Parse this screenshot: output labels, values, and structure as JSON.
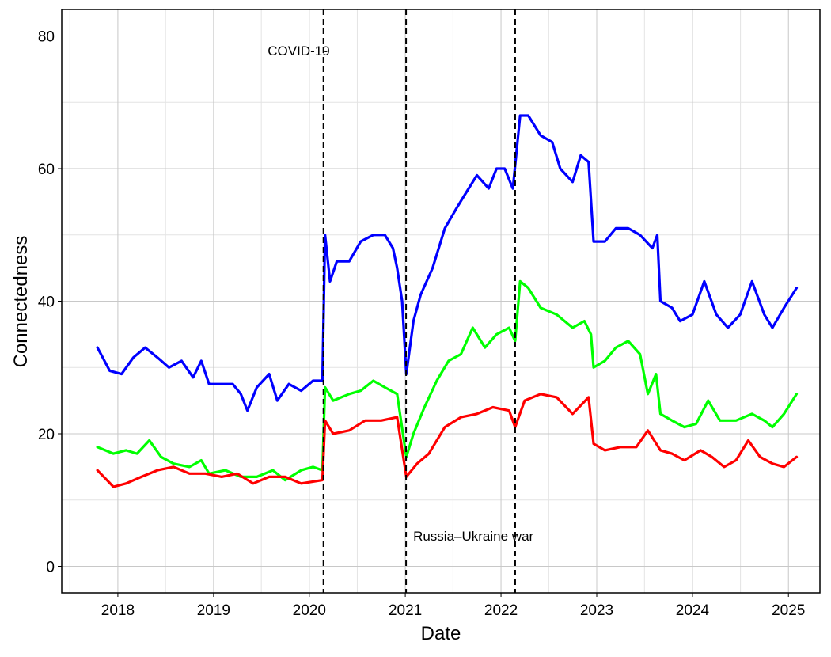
{
  "chart_data": {
    "type": "line",
    "title": "",
    "xlabel": "Date",
    "ylabel": "Connectedness",
    "x_ticks": [
      "2018",
      "2019",
      "2020",
      "2021",
      "2022",
      "2023",
      "2024",
      "2025"
    ],
    "y_ticks": [
      "0",
      "20",
      "40",
      "60",
      "80"
    ],
    "xlim": [
      "2017-06-01",
      "2025-05-01"
    ],
    "ylim": [
      -4,
      84
    ],
    "grid": true,
    "legend": "none",
    "events": [
      {
        "date": "2020-02-24",
        "label": "COVID-19"
      },
      {
        "date": "2021-01-04",
        "label": ""
      },
      {
        "date": "2022-02-24",
        "label": "Russia–Ukraine war"
      }
    ],
    "series": [
      {
        "color": "#0000ff",
        "points": [
          [
            "2017-10-15",
            33.0
          ],
          [
            "2017-12-01",
            29.5
          ],
          [
            "2018-01-15",
            29.0
          ],
          [
            "2018-03-01",
            31.5
          ],
          [
            "2018-04-15",
            33.0
          ],
          [
            "2018-06-01",
            31.5
          ],
          [
            "2018-07-15",
            30.0
          ],
          [
            "2018-09-01",
            31.0
          ],
          [
            "2018-10-15",
            28.5
          ],
          [
            "2018-11-15",
            31.0
          ],
          [
            "2018-12-15",
            27.5
          ],
          [
            "2019-02-01",
            27.5
          ],
          [
            "2019-03-15",
            27.5
          ],
          [
            "2019-04-15",
            26.0
          ],
          [
            "2019-05-10",
            23.5
          ],
          [
            "2019-06-15",
            27.0
          ],
          [
            "2019-08-01",
            29.0
          ],
          [
            "2019-09-01",
            25.0
          ],
          [
            "2019-10-15",
            27.5
          ],
          [
            "2019-12-01",
            26.5
          ],
          [
            "2020-01-15",
            28.0
          ],
          [
            "2020-02-20",
            28.0
          ],
          [
            "2020-03-01",
            50.0
          ],
          [
            "2020-03-20",
            43.0
          ],
          [
            "2020-04-15",
            46.0
          ],
          [
            "2020-06-01",
            46.0
          ],
          [
            "2020-07-15",
            49.0
          ],
          [
            "2020-09-01",
            50.0
          ],
          [
            "2020-10-15",
            50.0
          ],
          [
            "2020-11-15",
            48.0
          ],
          [
            "2020-12-01",
            45.0
          ],
          [
            "2020-12-20",
            40.0
          ],
          [
            "2021-01-05",
            29.0
          ],
          [
            "2021-02-01",
            37.0
          ],
          [
            "2021-03-01",
            41.0
          ],
          [
            "2021-04-15",
            45.0
          ],
          [
            "2021-06-01",
            51.0
          ],
          [
            "2021-07-15",
            54.0
          ],
          [
            "2021-08-15",
            56.0
          ],
          [
            "2021-10-01",
            59.0
          ],
          [
            "2021-11-15",
            57.0
          ],
          [
            "2021-12-15",
            60.0
          ],
          [
            "2022-01-15",
            60.0
          ],
          [
            "2022-02-15",
            57.0
          ],
          [
            "2022-03-15",
            68.0
          ],
          [
            "2022-04-15",
            68.0
          ],
          [
            "2022-06-01",
            65.0
          ],
          [
            "2022-07-15",
            64.0
          ],
          [
            "2022-08-15",
            60.0
          ],
          [
            "2022-10-01",
            58.0
          ],
          [
            "2022-11-01",
            62.0
          ],
          [
            "2022-12-01",
            61.0
          ],
          [
            "2022-12-20",
            49.0
          ],
          [
            "2023-02-01",
            49.0
          ],
          [
            "2023-03-15",
            51.0
          ],
          [
            "2023-05-01",
            51.0
          ],
          [
            "2023-06-15",
            50.0
          ],
          [
            "2023-08-01",
            48.0
          ],
          [
            "2023-08-20",
            50.0
          ],
          [
            "2023-09-01",
            40.0
          ],
          [
            "2023-10-15",
            39.0
          ],
          [
            "2023-11-15",
            37.0
          ],
          [
            "2024-01-01",
            38.0
          ],
          [
            "2024-02-15",
            43.0
          ],
          [
            "2024-04-01",
            38.0
          ],
          [
            "2024-05-15",
            36.0
          ],
          [
            "2024-07-01",
            38.0
          ],
          [
            "2024-08-15",
            43.0
          ],
          [
            "2024-10-01",
            38.0
          ],
          [
            "2024-11-01",
            36.0
          ],
          [
            "2024-12-15",
            39.0
          ],
          [
            "2025-02-01",
            42.0
          ]
        ]
      },
      {
        "color": "#00ff00",
        "points": [
          [
            "2017-10-15",
            18.0
          ],
          [
            "2017-12-15",
            17.0
          ],
          [
            "2018-02-01",
            17.5
          ],
          [
            "2018-03-15",
            17.0
          ],
          [
            "2018-05-01",
            19.0
          ],
          [
            "2018-06-15",
            16.5
          ],
          [
            "2018-08-01",
            15.5
          ],
          [
            "2018-10-01",
            15.0
          ],
          [
            "2018-11-15",
            16.0
          ],
          [
            "2018-12-15",
            14.0
          ],
          [
            "2019-02-15",
            14.5
          ],
          [
            "2019-04-15",
            13.5
          ],
          [
            "2019-06-15",
            13.5
          ],
          [
            "2019-08-15",
            14.5
          ],
          [
            "2019-10-01",
            13.0
          ],
          [
            "2019-12-01",
            14.5
          ],
          [
            "2020-01-15",
            15.0
          ],
          [
            "2020-02-20",
            14.5
          ],
          [
            "2020-03-01",
            27.0
          ],
          [
            "2020-04-01",
            25.0
          ],
          [
            "2020-06-01",
            26.0
          ],
          [
            "2020-07-15",
            26.5
          ],
          [
            "2020-09-01",
            28.0
          ],
          [
            "2020-10-15",
            27.0
          ],
          [
            "2020-12-01",
            26.0
          ],
          [
            "2021-01-05",
            16.5
          ],
          [
            "2021-02-01",
            20.0
          ],
          [
            "2021-03-15",
            24.0
          ],
          [
            "2021-05-01",
            28.0
          ],
          [
            "2021-06-15",
            31.0
          ],
          [
            "2021-08-01",
            32.0
          ],
          [
            "2021-09-15",
            36.0
          ],
          [
            "2021-11-01",
            33.0
          ],
          [
            "2021-12-15",
            35.0
          ],
          [
            "2022-02-01",
            36.0
          ],
          [
            "2022-02-24",
            34.0
          ],
          [
            "2022-03-15",
            43.0
          ],
          [
            "2022-04-15",
            42.0
          ],
          [
            "2022-06-01",
            39.0
          ],
          [
            "2022-08-01",
            38.0
          ],
          [
            "2022-10-01",
            36.0
          ],
          [
            "2022-11-15",
            37.0
          ],
          [
            "2022-12-10",
            35.0
          ],
          [
            "2022-12-20",
            30.0
          ],
          [
            "2023-02-01",
            31.0
          ],
          [
            "2023-03-15",
            33.0
          ],
          [
            "2023-05-01",
            34.0
          ],
          [
            "2023-06-15",
            32.0
          ],
          [
            "2023-07-15",
            26.0
          ],
          [
            "2023-08-15",
            29.0
          ],
          [
            "2023-09-01",
            23.0
          ],
          [
            "2023-10-15",
            22.0
          ],
          [
            "2023-12-01",
            21.0
          ],
          [
            "2024-01-15",
            21.5
          ],
          [
            "2024-03-01",
            25.0
          ],
          [
            "2024-04-15",
            22.0
          ],
          [
            "2024-06-15",
            22.0
          ],
          [
            "2024-08-15",
            23.0
          ],
          [
            "2024-10-01",
            22.0
          ],
          [
            "2024-11-01",
            21.0
          ],
          [
            "2024-12-15",
            23.0
          ],
          [
            "2025-02-01",
            26.0
          ]
        ]
      },
      {
        "color": "#ff0000",
        "points": [
          [
            "2017-10-15",
            14.5
          ],
          [
            "2017-12-15",
            12.0
          ],
          [
            "2018-02-01",
            12.5
          ],
          [
            "2018-04-01",
            13.5
          ],
          [
            "2018-06-01",
            14.5
          ],
          [
            "2018-08-01",
            15.0
          ],
          [
            "2018-10-01",
            14.0
          ],
          [
            "2018-12-01",
            14.0
          ],
          [
            "2019-02-01",
            13.5
          ],
          [
            "2019-04-01",
            14.0
          ],
          [
            "2019-06-01",
            12.5
          ],
          [
            "2019-08-01",
            13.5
          ],
          [
            "2019-10-01",
            13.5
          ],
          [
            "2019-12-01",
            12.5
          ],
          [
            "2020-02-20",
            13.0
          ],
          [
            "2020-03-01",
            22.0
          ],
          [
            "2020-04-01",
            20.0
          ],
          [
            "2020-06-01",
            20.5
          ],
          [
            "2020-08-01",
            22.0
          ],
          [
            "2020-10-01",
            22.0
          ],
          [
            "2020-12-01",
            22.5
          ],
          [
            "2021-01-05",
            13.5
          ],
          [
            "2021-02-15",
            15.5
          ],
          [
            "2021-04-01",
            17.0
          ],
          [
            "2021-06-01",
            21.0
          ],
          [
            "2021-08-01",
            22.5
          ],
          [
            "2021-10-01",
            23.0
          ],
          [
            "2021-12-01",
            24.0
          ],
          [
            "2022-02-01",
            23.5
          ],
          [
            "2022-02-24",
            21.0
          ],
          [
            "2022-04-01",
            25.0
          ],
          [
            "2022-06-01",
            26.0
          ],
          [
            "2022-08-01",
            25.5
          ],
          [
            "2022-10-01",
            23.0
          ],
          [
            "2022-12-01",
            25.5
          ],
          [
            "2022-12-20",
            18.5
          ],
          [
            "2023-02-01",
            17.5
          ],
          [
            "2023-04-01",
            18.0
          ],
          [
            "2023-06-01",
            18.0
          ],
          [
            "2023-07-15",
            20.5
          ],
          [
            "2023-09-01",
            17.5
          ],
          [
            "2023-10-15",
            17.0
          ],
          [
            "2023-12-01",
            16.0
          ],
          [
            "2024-02-01",
            17.5
          ],
          [
            "2024-03-15",
            16.5
          ],
          [
            "2024-05-01",
            15.0
          ],
          [
            "2024-06-15",
            16.0
          ],
          [
            "2024-08-01",
            19.0
          ],
          [
            "2024-09-15",
            16.5
          ],
          [
            "2024-11-01",
            15.5
          ],
          [
            "2024-12-15",
            15.0
          ],
          [
            "2025-02-01",
            16.5
          ]
        ]
      }
    ]
  }
}
